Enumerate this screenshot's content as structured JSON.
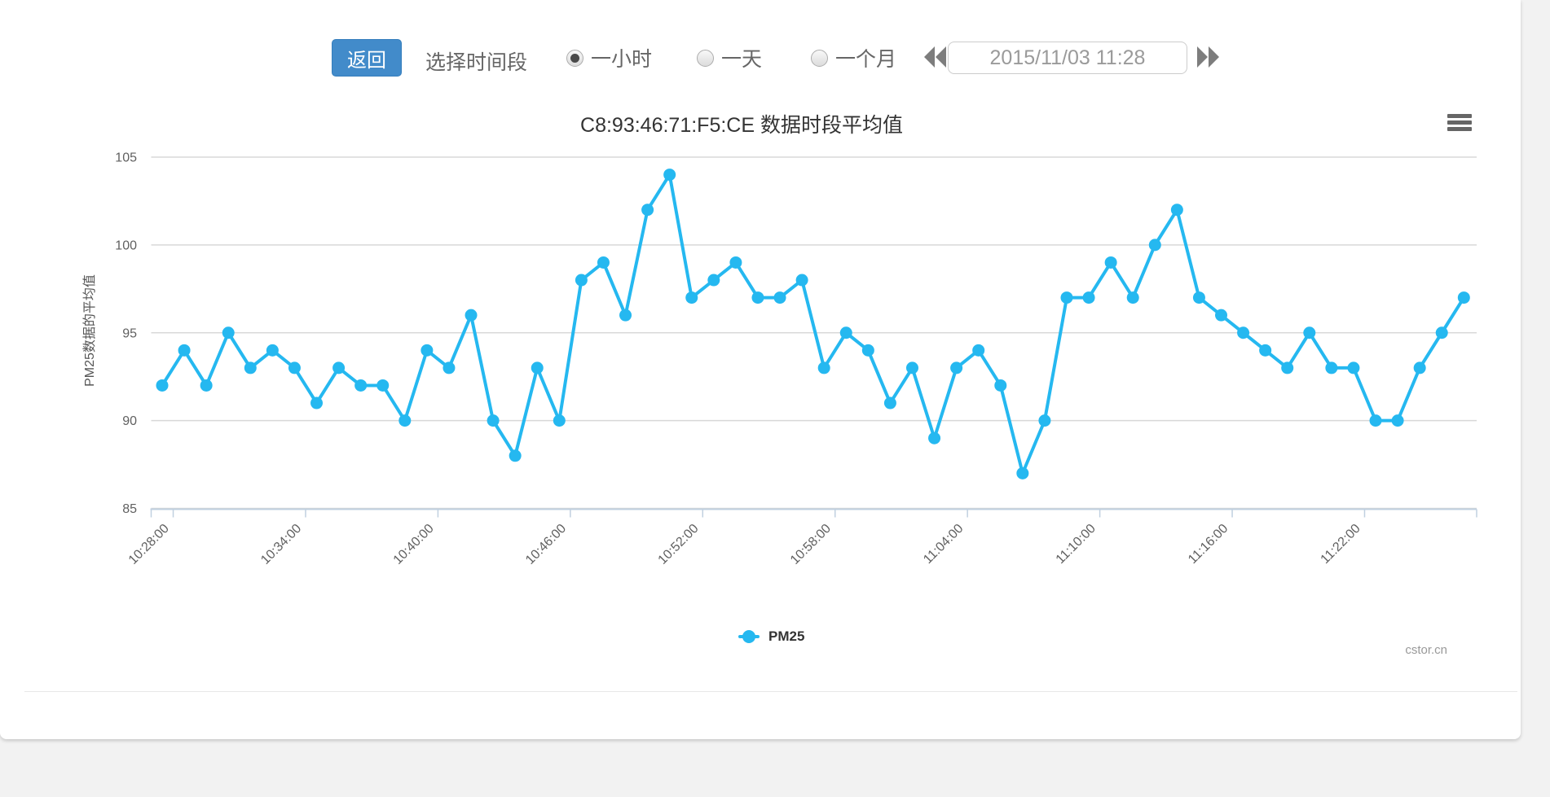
{
  "page": {
    "background_color": "#f2f2f2",
    "card_color": "#ffffff"
  },
  "toolbar": {
    "back_button": "返回",
    "back_button_color": "#428bca",
    "period_label": "选择时间段",
    "radios": [
      {
        "label": "一小时",
        "selected": true
      },
      {
        "label": "一天",
        "selected": false
      },
      {
        "label": "一个月",
        "selected": false
      }
    ],
    "prev_icon": "double-left-arrows",
    "next_icon": "double-right-arrows",
    "datetime_value": "2015/11/03 11:28"
  },
  "chart_data": {
    "type": "line",
    "title": "C8:93:46:71:F5:CE 数据时段平均值",
    "ylabel": "PM25数据的平均值",
    "xlabel": "",
    "ylim": [
      85,
      105
    ],
    "yticks": [
      85,
      90,
      95,
      100,
      105
    ],
    "grid": true,
    "legend_position": "bottom",
    "x_tick_labels": [
      "10:28:00",
      "10:34:00",
      "10:40:00",
      "10:46:00",
      "10:52:00",
      "10:58:00",
      "11:04:00",
      "11:10:00",
      "11:16:00",
      "11:22:00"
    ],
    "tick_every": 6,
    "series": [
      {
        "name": "PM25",
        "color": "#25b8f0",
        "values": [
          92,
          94,
          92,
          95,
          93,
          94,
          93,
          91,
          93,
          92,
          92,
          90,
          94,
          93,
          96,
          90,
          88,
          93,
          90,
          98,
          99,
          96,
          102,
          104,
          97,
          98,
          99,
          97,
          97,
          98,
          93,
          95,
          94,
          91,
          93,
          89,
          93,
          94,
          92,
          87,
          90,
          97,
          97,
          99,
          97,
          100,
          102,
          97,
          96,
          95,
          94,
          93,
          95,
          93,
          93,
          90,
          90,
          93,
          95,
          97
        ]
      }
    ],
    "watermark": "cstor.cn",
    "export_menu_icon": "hamburger"
  }
}
